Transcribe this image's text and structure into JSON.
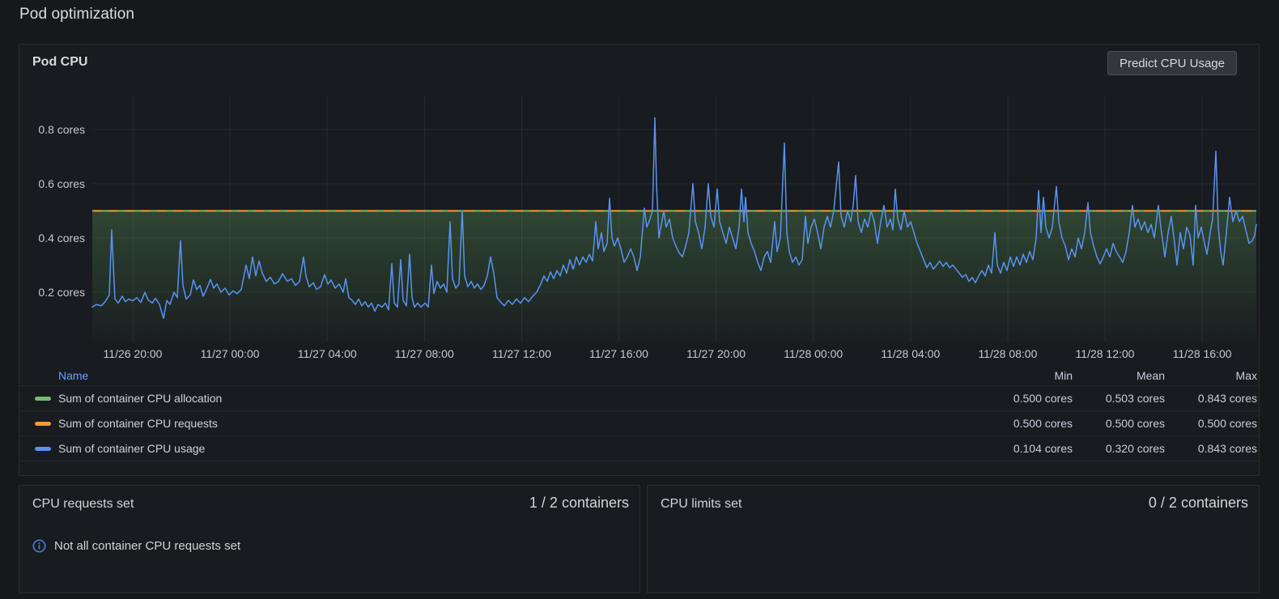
{
  "page": {
    "title": "Pod optimization"
  },
  "cpu_panel": {
    "title": "Pod CPU",
    "predict_button": "Predict CPU Usage",
    "legend": {
      "headers": {
        "name": "Name",
        "min": "Min",
        "mean": "Mean",
        "max": "Max"
      }
    }
  },
  "requests_panel": {
    "title": "CPU requests set",
    "value": "1 / 2 containers",
    "warning": "Not all container CPU requests set"
  },
  "limits_panel": {
    "title": "CPU limits set",
    "value": "0 / 2 containers"
  },
  "colors": {
    "allocation": "#73BF69",
    "requests": "#FF9830",
    "usage": "#5794F2",
    "legend_link": "#6E9FFF",
    "info": "#4a7ce0"
  },
  "chart_data": {
    "type": "line",
    "title": "Pod CPU",
    "y_unit": "cores",
    "grid": true,
    "legend_position": "bottom-table",
    "y_axis": {
      "min": 0.018,
      "max": 0.925,
      "tick_values": [
        0.2,
        0.4,
        0.6,
        0.8
      ]
    },
    "y_ticks": [
      "0.2 cores",
      "0.4 cores",
      "0.6 cores",
      "0.8 cores"
    ],
    "x_ticks": [
      "11/26 20:00",
      "11/27 00:00",
      "11/27 04:00",
      "11/27 08:00",
      "11/27 12:00",
      "11/27 16:00",
      "11/27 20:00",
      "11/28 00:00",
      "11/28 04:00",
      "11/28 08:00",
      "11/28 12:00",
      "11/28 16:00"
    ],
    "series": [
      {
        "name": "Sum of container CPU allocation",
        "color": "#73BF69",
        "style": "constant-area",
        "value": 0.5,
        "min": "0.500 cores",
        "mean": "0.503 cores",
        "max": "0.843 cores"
      },
      {
        "name": "Sum of container CPU requests",
        "color": "#FF9830",
        "style": "constant-dashed",
        "value": 0.5,
        "min": "0.500 cores",
        "mean": "0.500 cores",
        "max": "0.500 cores"
      },
      {
        "name": "Sum of container CPU usage",
        "color": "#5794F2",
        "style": "line",
        "min": "0.104 cores",
        "mean": "0.320 cores",
        "max": "0.843 cores",
        "points": [
          0,
          0.145,
          5,
          0.155,
          11,
          0.15,
          16,
          0.165,
          21,
          0.19,
          24,
          0.43,
          26,
          0.3,
          28,
          0.175,
          32,
          0.16,
          37,
          0.185,
          41,
          0.165,
          45,
          0.175,
          50,
          0.168,
          55,
          0.18,
          60,
          0.162,
          65,
          0.2,
          69,
          0.172,
          74,
          0.16,
          78,
          0.178,
          83,
          0.155,
          88,
          0.104,
          92,
          0.17,
          96,
          0.155,
          101,
          0.2,
          105,
          0.18,
          109,
          0.39,
          112,
          0.225,
          116,
          0.175,
          121,
          0.19,
          125,
          0.245,
          129,
          0.21,
          133,
          0.225,
          137,
          0.185,
          141,
          0.21,
          146,
          0.247,
          150,
          0.215,
          154,
          0.23,
          159,
          0.2,
          164,
          0.215,
          169,
          0.19,
          174,
          0.205,
          179,
          0.195,
          184,
          0.21,
          190,
          0.3,
          194,
          0.25,
          198,
          0.33,
          202,
          0.26,
          206,
          0.315,
          210,
          0.27,
          215,
          0.24,
          220,
          0.255,
          225,
          0.23,
          230,
          0.24,
          235,
          0.268,
          241,
          0.24,
          246,
          0.25,
          251,
          0.225,
          256,
          0.24,
          261,
          0.33,
          264,
          0.26,
          268,
          0.22,
          273,
          0.235,
          277,
          0.21,
          282,
          0.22,
          287,
          0.265,
          291,
          0.23,
          295,
          0.245,
          300,
          0.215,
          305,
          0.23,
          310,
          0.2,
          313,
          0.25,
          317,
          0.18,
          321,
          0.17,
          325,
          0.155,
          329,
          0.175,
          333,
          0.15,
          337,
          0.165,
          341,
          0.145,
          345,
          0.16,
          349,
          0.13,
          353,
          0.155,
          358,
          0.145,
          362,
          0.16,
          366,
          0.135,
          370,
          0.305,
          373,
          0.16,
          377,
          0.145,
          381,
          0.32,
          384,
          0.17,
          388,
          0.15,
          392,
          0.34,
          395,
          0.18,
          398,
          0.145,
          402,
          0.16,
          406,
          0.145,
          411,
          0.16,
          415,
          0.145,
          419,
          0.3,
          422,
          0.195,
          426,
          0.24,
          430,
          0.215,
          434,
          0.23,
          438,
          0.2,
          442,
          0.46,
          445,
          0.25,
          449,
          0.215,
          453,
          0.23,
          457,
          0.5,
          460,
          0.26,
          464,
          0.22,
          468,
          0.24,
          472,
          0.215,
          476,
          0.23,
          480,
          0.21,
          484,
          0.225,
          488,
          0.26,
          492,
          0.33,
          496,
          0.27,
          500,
          0.18,
          504,
          0.165,
          509,
          0.15,
          514,
          0.17,
          519,
          0.155,
          524,
          0.175,
          529,
          0.16,
          534,
          0.18,
          539,
          0.165,
          544,
          0.185,
          549,
          0.2,
          554,
          0.23,
          558,
          0.26,
          562,
          0.24,
          566,
          0.275,
          570,
          0.25,
          574,
          0.28,
          578,
          0.26,
          582,
          0.3,
          586,
          0.27,
          590,
          0.32,
          594,
          0.285,
          598,
          0.33,
          602,
          0.3,
          606,
          0.33,
          610,
          0.31,
          614,
          0.34,
          618,
          0.315,
          622,
          0.46,
          625,
          0.36,
          629,
          0.42,
          632,
          0.35,
          636,
          0.38,
          639,
          0.546,
          642,
          0.4,
          645,
          0.37,
          649,
          0.4,
          653,
          0.36,
          657,
          0.31,
          661,
          0.33,
          665,
          0.36,
          669,
          0.33,
          673,
          0.28,
          677,
          0.33,
          682,
          0.51,
          685,
          0.44,
          689,
          0.47,
          692,
          0.5,
          695,
          0.843,
          697,
          0.6,
          700,
          0.4,
          703,
          0.45,
          706,
          0.5,
          709,
          0.44,
          713,
          0.47,
          717,
          0.4,
          721,
          0.37,
          725,
          0.345,
          729,
          0.33,
          733,
          0.37,
          737,
          0.42,
          742,
          0.6,
          745,
          0.46,
          749,
          0.42,
          753,
          0.36,
          757,
          0.44,
          761,
          0.6,
          764,
          0.48,
          768,
          0.44,
          772,
          0.58,
          775,
          0.46,
          779,
          0.42,
          783,
          0.38,
          787,
          0.44,
          791,
          0.4,
          795,
          0.36,
          799,
          0.44,
          802,
          0.58,
          805,
          0.46,
          807,
          0.55,
          810,
          0.42,
          814,
          0.38,
          818,
          0.35,
          822,
          0.31,
          826,
          0.28,
          830,
          0.33,
          834,
          0.35,
          838,
          0.31,
          843,
          0.46,
          846,
          0.35,
          850,
          0.4,
          855,
          0.75,
          858,
          0.42,
          861,
          0.35,
          865,
          0.31,
          869,
          0.33,
          873,
          0.3,
          877,
          0.32,
          881,
          0.48,
          884,
          0.38,
          888,
          0.44,
          892,
          0.47,
          896,
          0.42,
          900,
          0.36,
          904,
          0.44,
          908,
          0.48,
          912,
          0.44,
          916,
          0.5,
          922,
          0.68,
          925,
          0.48,
          929,
          0.44,
          933,
          0.5,
          937,
          0.46,
          940,
          0.52,
          943,
          0.63,
          946,
          0.46,
          950,
          0.42,
          954,
          0.47,
          958,
          0.44,
          962,
          0.5,
          966,
          0.46,
          970,
          0.38,
          974,
          0.46,
          978,
          0.52,
          982,
          0.44,
          986,
          0.47,
          989,
          0.43,
          992,
          0.58,
          995,
          0.47,
          999,
          0.43,
          1003,
          0.5,
          1007,
          0.44,
          1011,
          0.46,
          1015,
          0.42,
          1019,
          0.38,
          1023,
          0.35,
          1027,
          0.32,
          1031,
          0.29,
          1035,
          0.31,
          1039,
          0.285,
          1043,
          0.3,
          1047,
          0.315,
          1051,
          0.295,
          1055,
          0.31,
          1059,
          0.29,
          1063,
          0.3,
          1067,
          0.285,
          1071,
          0.27,
          1075,
          0.255,
          1079,
          0.265,
          1083,
          0.24,
          1087,
          0.255,
          1091,
          0.235,
          1095,
          0.26,
          1099,
          0.28,
          1103,
          0.26,
          1107,
          0.3,
          1111,
          0.27,
          1115,
          0.42,
          1118,
          0.3,
          1122,
          0.27,
          1126,
          0.31,
          1130,
          0.28,
          1134,
          0.33,
          1138,
          0.295,
          1142,
          0.33,
          1146,
          0.3,
          1150,
          0.34,
          1154,
          0.31,
          1158,
          0.35,
          1162,
          0.32,
          1166,
          0.4,
          1169,
          0.575,
          1172,
          0.42,
          1175,
          0.55,
          1178,
          0.44,
          1182,
          0.4,
          1186,
          0.44,
          1191,
          0.59,
          1194,
          0.46,
          1198,
          0.4,
          1202,
          0.37,
          1206,
          0.32,
          1210,
          0.36,
          1214,
          0.33,
          1218,
          0.4,
          1222,
          0.36,
          1226,
          0.42,
          1230,
          0.53,
          1233,
          0.42,
          1237,
          0.37,
          1241,
          0.33,
          1245,
          0.305,
          1249,
          0.33,
          1253,
          0.36,
          1257,
          0.33,
          1261,
          0.38,
          1265,
          0.35,
          1269,
          0.33,
          1273,
          0.31,
          1277,
          0.35,
          1281,
          0.42,
          1285,
          0.52,
          1288,
          0.44,
          1292,
          0.47,
          1296,
          0.43,
          1300,
          0.46,
          1304,
          0.42,
          1308,
          0.45,
          1312,
          0.4,
          1317,
          0.52,
          1320,
          0.44,
          1325,
          0.33,
          1329,
          0.42,
          1333,
          0.48,
          1337,
          0.38,
          1340,
          0.3,
          1344,
          0.42,
          1348,
          0.36,
          1352,
          0.44,
          1356,
          0.41,
          1360,
          0.3,
          1363,
          0.52,
          1366,
          0.4,
          1370,
          0.44,
          1374,
          0.38,
          1377,
          0.34,
          1381,
          0.42,
          1384,
          0.47,
          1388,
          0.72,
          1391,
          0.44,
          1394,
          0.35,
          1397,
          0.3,
          1401,
          0.42,
          1405,
          0.55,
          1409,
          0.46,
          1413,
          0.5,
          1417,
          0.46,
          1421,
          0.48,
          1425,
          0.43,
          1429,
          0.38,
          1433,
          0.39,
          1436,
          0.41,
          1438,
          0.45
        ]
      }
    ]
  }
}
